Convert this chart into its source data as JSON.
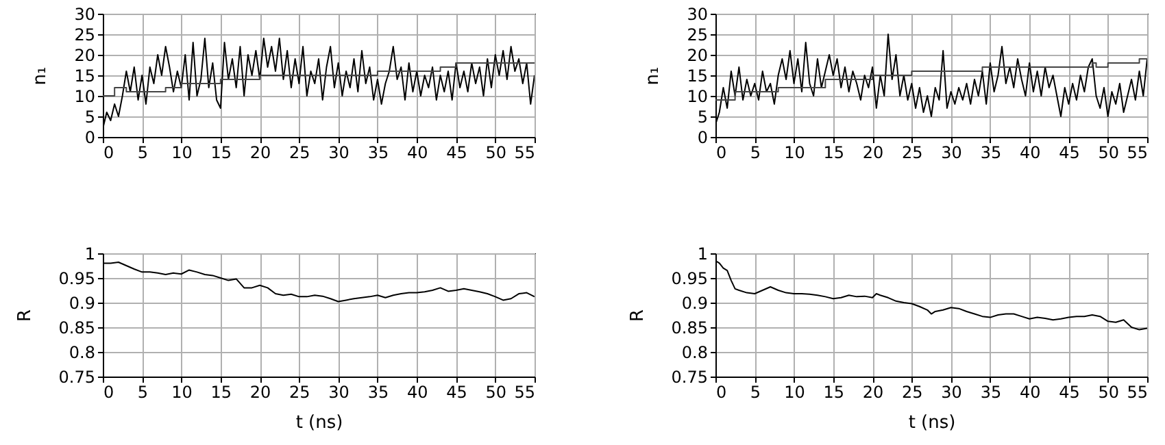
{
  "chart_data": [
    {
      "type": "line",
      "ylabel": "n₁",
      "xlim": [
        0,
        55
      ],
      "xticks": [
        0,
        5,
        10,
        15,
        20,
        25,
        30,
        35,
        40,
        45,
        50,
        55
      ],
      "ylim": [
        0,
        30
      ],
      "yticks": [
        0,
        5,
        10,
        15,
        20,
        25,
        30
      ],
      "grid": true,
      "series": [
        {
          "type": "line",
          "color": "#000000",
          "x": [
            0,
            0.5,
            1,
            1.5,
            2,
            2.5,
            3,
            3.5,
            4,
            4.5,
            5,
            5.5,
            6,
            6.5,
            7,
            7.5,
            8,
            8.5,
            9,
            9.5,
            10,
            10.5,
            11,
            11.5,
            12,
            12.5,
            13,
            13.5,
            14,
            14.5,
            15,
            15.5,
            16,
            16.5,
            17,
            17.5,
            18,
            18.5,
            19,
            19.5,
            20,
            20.5,
            21,
            21.5,
            22,
            22.5,
            23,
            23.5,
            24,
            24.5,
            25,
            25.5,
            26,
            26.5,
            27,
            27.5,
            28,
            28.5,
            29,
            29.5,
            30,
            30.5,
            31,
            31.5,
            32,
            32.5,
            33,
            33.5,
            34,
            34.5,
            35,
            35.5,
            36,
            36.5,
            37,
            37.5,
            38,
            38.5,
            39,
            39.5,
            40,
            40.5,
            41,
            41.5,
            42,
            42.5,
            43,
            43.5,
            44,
            44.5,
            45,
            45.5,
            46,
            46.5,
            47,
            47.5,
            48,
            48.5,
            49,
            49.5,
            50,
            50.5,
            51,
            51.5,
            52,
            52.5,
            53,
            53.5,
            54,
            54.5,
            55
          ],
          "values": [
            2,
            6,
            4,
            8,
            5,
            10,
            16,
            11,
            17,
            9,
            15,
            8,
            17,
            13,
            20,
            15,
            22,
            17,
            11,
            16,
            12,
            20,
            9,
            23,
            10,
            14,
            24,
            12,
            18,
            9,
            7,
            23,
            14,
            19,
            12,
            22,
            10,
            20,
            15,
            21,
            14,
            24,
            17,
            22,
            16,
            24,
            14,
            21,
            12,
            19,
            13,
            22,
            10,
            16,
            13,
            19,
            9,
            17,
            22,
            12,
            18,
            10,
            16,
            12,
            19,
            11,
            21,
            13,
            17,
            9,
            14,
            8,
            13,
            16,
            22,
            14,
            17,
            9,
            18,
            11,
            16,
            10,
            15,
            12,
            17,
            9,
            15,
            11,
            16,
            9,
            18,
            12,
            16,
            11,
            18,
            13,
            17,
            10,
            19,
            12,
            20,
            15,
            21,
            14,
            22,
            16,
            19,
            13,
            18,
            8,
            15
          ]
        },
        {
          "type": "step",
          "color": "#444444",
          "x": [
            0,
            1.5,
            3,
            8,
            10,
            15,
            20,
            35,
            43,
            45,
            55
          ],
          "values": [
            10,
            12,
            11,
            12,
            13,
            14,
            15,
            16,
            17,
            18,
            18
          ]
        }
      ]
    },
    {
      "type": "line",
      "ylabel": "n₁",
      "xlim": [
        0,
        55
      ],
      "xticks": [
        0,
        5,
        10,
        15,
        20,
        25,
        30,
        35,
        40,
        45,
        50,
        55
      ],
      "ylim": [
        0,
        30
      ],
      "yticks": [
        0,
        5,
        10,
        15,
        20,
        25,
        30
      ],
      "grid": true,
      "series": [
        {
          "type": "line",
          "color": "#000000",
          "x": [
            0,
            0.5,
            1,
            1.5,
            2,
            2.5,
            3,
            3.5,
            4,
            4.5,
            5,
            5.5,
            6,
            6.5,
            7,
            7.5,
            8,
            8.5,
            9,
            9.5,
            10,
            10.5,
            11,
            11.5,
            12,
            12.5,
            13,
            13.5,
            14,
            14.5,
            15,
            15.5,
            16,
            16.5,
            17,
            17.5,
            18,
            18.5,
            19,
            19.5,
            20,
            20.5,
            21,
            21.5,
            22,
            22.5,
            23,
            23.5,
            24,
            24.5,
            25,
            25.5,
            26,
            26.5,
            27,
            27.5,
            28,
            28.5,
            29,
            29.5,
            30,
            30.5,
            31,
            31.5,
            32,
            32.5,
            33,
            33.5,
            34,
            34.5,
            35,
            35.5,
            36,
            36.5,
            37,
            37.5,
            38,
            38.5,
            39,
            39.5,
            40,
            40.5,
            41,
            41.5,
            42,
            42.5,
            43,
            43.5,
            44,
            44.5,
            45,
            45.5,
            46,
            46.5,
            47,
            47.5,
            48,
            48.5,
            49,
            49.5,
            50,
            50.5,
            51,
            51.5,
            52,
            52.5,
            53,
            53.5,
            54,
            54.5,
            55
          ],
          "values": [
            3,
            6,
            12,
            7,
            16,
            10,
            17,
            9,
            14,
            10,
            13,
            9,
            16,
            11,
            13,
            8,
            15,
            19,
            14,
            21,
            13,
            19,
            11,
            23,
            13,
            10,
            19,
            12,
            16,
            20,
            15,
            19,
            12,
            17,
            11,
            16,
            13,
            9,
            15,
            12,
            17,
            7,
            15,
            10,
            25,
            14,
            20,
            10,
            15,
            9,
            13,
            7,
            12,
            6,
            10,
            5,
            12,
            9,
            21,
            7,
            11,
            8,
            12,
            9,
            13,
            8,
            14,
            10,
            16,
            8,
            18,
            11,
            15,
            22,
            13,
            17,
            12,
            19,
            14,
            10,
            18,
            11,
            16,
            10,
            17,
            12,
            15,
            10,
            5,
            12,
            8,
            13,
            9,
            15,
            11,
            17,
            19,
            10,
            7,
            12,
            5,
            11,
            8,
            13,
            6,
            10,
            14,
            9,
            16,
            10,
            19
          ]
        },
        {
          "type": "step",
          "color": "#444444",
          "x": [
            0,
            2.5,
            8,
            14,
            20,
            25,
            34,
            48,
            48.5,
            50,
            54,
            55
          ],
          "values": [
            9,
            11,
            12,
            14,
            15,
            16,
            17,
            18,
            17,
            18,
            19,
            19
          ]
        }
      ]
    },
    {
      "type": "line",
      "xlabel": "t (ns)",
      "ylabel": "R",
      "xlim": [
        0,
        55
      ],
      "xticks": [
        0,
        5,
        10,
        15,
        20,
        25,
        30,
        35,
        40,
        45,
        50,
        55
      ],
      "ylim": [
        0.75,
        1
      ],
      "yticks": [
        0.75,
        0.8,
        0.85,
        0.9,
        0.95,
        1
      ],
      "grid": true,
      "series": [
        {
          "type": "line",
          "color": "#000000",
          "x": [
            0,
            1,
            2,
            3,
            4,
            5,
            6,
            7,
            8,
            9,
            10,
            11,
            12,
            13,
            14,
            15,
            16,
            17,
            18,
            19,
            20,
            21,
            22,
            23,
            24,
            25,
            26,
            27,
            28,
            29,
            30,
            31,
            32,
            33,
            34,
            35,
            36,
            37,
            38,
            39,
            40,
            41,
            42,
            43,
            44,
            45,
            46,
            47,
            48,
            49,
            50,
            51,
            52,
            53,
            54,
            55
          ],
          "values": [
            0.98,
            0.98,
            0.982,
            0.975,
            0.968,
            0.962,
            0.962,
            0.96,
            0.957,
            0.96,
            0.958,
            0.966,
            0.962,
            0.957,
            0.955,
            0.95,
            0.945,
            0.948,
            0.93,
            0.93,
            0.935,
            0.93,
            0.918,
            0.915,
            0.917,
            0.912,
            0.912,
            0.915,
            0.913,
            0.908,
            0.902,
            0.905,
            0.908,
            0.91,
            0.912,
            0.915,
            0.91,
            0.915,
            0.918,
            0.92,
            0.92,
            0.922,
            0.925,
            0.93,
            0.923,
            0.925,
            0.928,
            0.925,
            0.922,
            0.918,
            0.912,
            0.905,
            0.908,
            0.918,
            0.92,
            0.912
          ]
        }
      ]
    },
    {
      "type": "line",
      "xlabel": "t (ns)",
      "ylabel": "R",
      "xlim": [
        0,
        55
      ],
      "xticks": [
        0,
        5,
        10,
        15,
        20,
        25,
        30,
        35,
        40,
        45,
        50,
        55
      ],
      "ylim": [
        0.75,
        1
      ],
      "yticks": [
        0.75,
        0.8,
        0.85,
        0.9,
        0.95,
        1
      ],
      "grid": true,
      "series": [
        {
          "type": "line",
          "color": "#000000",
          "x": [
            0,
            0.5,
            1,
            1.5,
            2,
            2.5,
            3,
            4,
            5,
            6,
            7,
            8,
            9,
            10,
            11,
            12,
            13,
            14,
            15,
            16,
            17,
            18,
            19,
            20,
            20.5,
            21,
            22,
            23,
            24,
            25,
            26,
            27,
            27.5,
            28,
            29,
            30,
            31,
            32,
            33,
            34,
            35,
            36,
            37,
            38,
            39,
            40,
            41,
            42,
            43,
            44,
            45,
            46,
            47,
            48,
            49,
            50,
            51,
            52,
            53,
            54,
            55
          ],
          "values": [
            0.985,
            0.98,
            0.97,
            0.965,
            0.945,
            0.928,
            0.925,
            0.92,
            0.918,
            0.925,
            0.932,
            0.925,
            0.92,
            0.918,
            0.918,
            0.917,
            0.915,
            0.912,
            0.908,
            0.91,
            0.915,
            0.912,
            0.913,
            0.91,
            0.918,
            0.915,
            0.91,
            0.903,
            0.9,
            0.898,
            0.892,
            0.885,
            0.877,
            0.882,
            0.885,
            0.89,
            0.888,
            0.882,
            0.877,
            0.872,
            0.87,
            0.875,
            0.877,
            0.877,
            0.872,
            0.867,
            0.87,
            0.868,
            0.865,
            0.867,
            0.87,
            0.872,
            0.872,
            0.875,
            0.872,
            0.862,
            0.86,
            0.865,
            0.85,
            0.845,
            0.848
          ]
        }
      ]
    }
  ]
}
